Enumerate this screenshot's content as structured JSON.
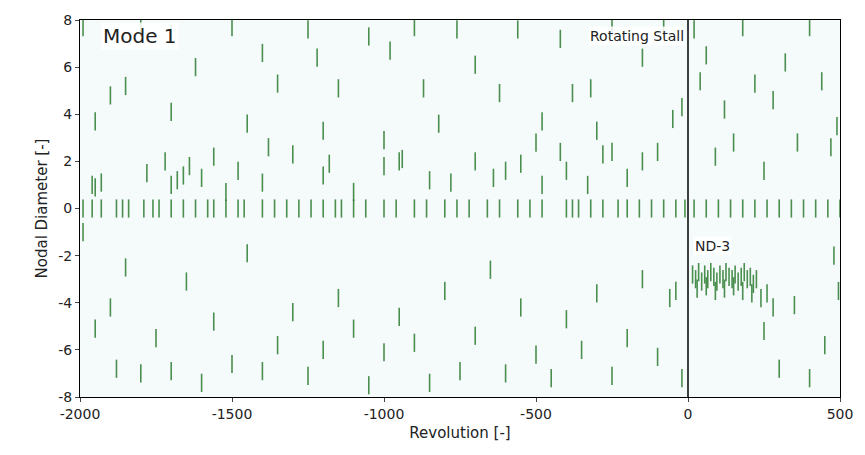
{
  "chart_data": {
    "type": "scatter",
    "x_label": "Revolution [-]",
    "y_label": "Nodal Diameter [-]",
    "xlim": [
      -2000,
      500
    ],
    "xticks": [
      -2000,
      -1500,
      -1000,
      -500,
      0,
      500
    ],
    "ylim": [
      -8,
      8
    ],
    "yticks": [
      -8,
      -6,
      -4,
      -2,
      0,
      2,
      4,
      6,
      8
    ],
    "grid": false,
    "color": "#2e7d32",
    "marker": "line-ns",
    "event_line_x": 0,
    "annotations": [
      {
        "text": "Mode 1",
        "x": -1930,
        "y": 7.3
      },
      {
        "text": "Rotating Stall",
        "x": -5,
        "y": 7.3
      },
      {
        "text": "ND-3",
        "x": 80,
        "y": -2.0
      }
    ],
    "x": [
      -1960,
      -1950,
      -1930,
      -1780,
      -1720,
      -1700,
      -1680,
      -1660,
      -1640,
      -1600,
      -1560,
      -1520,
      -1480,
      -1400,
      -1380,
      -1300,
      -1200,
      -1180,
      -1100,
      -1000,
      -950,
      -940,
      -850,
      -780,
      -700,
      -640,
      -600,
      -550,
      -480,
      -420,
      -400,
      -330,
      -280,
      -250,
      -200,
      -150,
      -100,
      -50,
      -1990,
      -1900,
      -1850,
      -1800,
      -1700,
      -1620,
      -1500,
      -1400,
      -1350,
      -1250,
      -1220,
      -1150,
      -1050,
      -980,
      -900,
      -870,
      -760,
      -700,
      -620,
      -560,
      -480,
      -420,
      -380,
      -320,
      -250,
      -150,
      -80,
      -20,
      -1950,
      -1700,
      -1450,
      -1200,
      -1000,
      -820,
      -500,
      -300,
      20,
      40,
      60,
      90,
      120,
      150,
      180,
      220,
      250,
      280,
      320,
      360,
      400,
      440,
      470,
      490,
      -1990,
      -1950,
      -1900,
      -1880,
      -1850,
      -1800,
      -1750,
      -1700,
      -1650,
      -1600,
      -1560,
      -1500,
      -1450,
      -1400,
      -1350,
      -1300,
      -1250,
      -1200,
      -1150,
      -1100,
      -1050,
      -1000,
      -950,
      -900,
      -850,
      -800,
      -750,
      -700,
      -650,
      -600,
      -550,
      -500,
      -450,
      -400,
      -350,
      -300,
      -250,
      -200,
      -150,
      -100,
      -60,
      -40,
      -20,
      250,
      300,
      350,
      400,
      450,
      480,
      495,
      15,
      25,
      35,
      45,
      55,
      65,
      75,
      85,
      95,
      105,
      115,
      125,
      135,
      145,
      155,
      165,
      175,
      185,
      195,
      205,
      215,
      225,
      30,
      60,
      90,
      120,
      150,
      180,
      210,
      240,
      260,
      280,
      -1990,
      -1960,
      -1930,
      -1880,
      -1860,
      -1840,
      -1790,
      -1760,
      -1740,
      -1700,
      -1660,
      -1620,
      -1580,
      -1560,
      -1520,
      -1480,
      -1460,
      -1400,
      -1360,
      -1320,
      -1280,
      -1240,
      -1200,
      -1160,
      -1140,
      -1100,
      -1060,
      -1000,
      -960,
      -900,
      -860,
      -800,
      -760,
      -720,
      -660,
      -620,
      -560,
      -520,
      -480,
      -400,
      -380,
      -360,
      -320,
      -280,
      -230,
      -200,
      -160,
      -120,
      -80,
      -40,
      -10,
      20,
      60,
      100,
      140,
      180,
      220,
      260,
      300,
      340,
      380,
      420,
      460,
      500
    ],
    "y": [
      1.0,
      0.9,
      1.1,
      1.5,
      2.0,
      1.0,
      1.2,
      1.4,
      1.8,
      1.3,
      2.2,
      0.7,
      1.6,
      1.1,
      2.6,
      2.3,
      1.4,
      1.9,
      0.7,
      1.8,
      2.0,
      2.1,
      1.2,
      1.1,
      2.0,
      1.3,
      1.6,
      1.9,
      1.0,
      2.4,
      1.6,
      1.0,
      2.3,
      2.4,
      1.3,
      2.0,
      2.4,
      3.8,
      7.7,
      4.8,
      5.2,
      7.7,
      7.4,
      6.0,
      7.7,
      6.6,
      5.3,
      7.6,
      6.4,
      5.1,
      7.3,
      6.7,
      7.7,
      5.1,
      7.6,
      6.1,
      4.9,
      7.6,
      3.7,
      7.2,
      4.9,
      5.1,
      7.7,
      6.4,
      7.7,
      4.3,
      3.7,
      4.1,
      3.6,
      3.3,
      2.9,
      3.6,
      2.8,
      3.3,
      7.6,
      5.4,
      6.5,
      2.2,
      4.2,
      2.8,
      7.7,
      5.3,
      1.6,
      4.6,
      6.2,
      2.8,
      7.7,
      5.4,
      2.6,
      3.5,
      -1.0,
      -5.1,
      -4.2,
      -6.8,
      -2.5,
      -7.0,
      -5.5,
      -6.9,
      -3.1,
      -7.4,
      -4.8,
      -6.6,
      -1.9,
      -6.9,
      -5.8,
      -4.4,
      -7.1,
      -6.0,
      -3.8,
      -5.1,
      -7.5,
      -6.1,
      -4.6,
      -5.7,
      -7.4,
      -3.5,
      -6.9,
      -5.4,
      -2.6,
      -7.0,
      -4.2,
      -6.2,
      -7.2,
      -4.7,
      -6.0,
      -3.6,
      -7.1,
      -5.5,
      -3.0,
      -6.3,
      -3.8,
      -3.5,
      -7.2,
      -5.2,
      -6.8,
      -4.1,
      -7.2,
      -5.8,
      -2.0,
      -3.5,
      -2.8,
      -3.0,
      -2.7,
      -3.1,
      -2.8,
      -3.0,
      -2.7,
      -2.9,
      -3.1,
      -2.8,
      -3.0,
      -2.7,
      -2.9,
      -3.0,
      -2.8,
      -3.1,
      -2.9,
      -2.7,
      -3.0,
      -2.9,
      -3.2,
      -3.0,
      -3.4,
      -3.3,
      -3.5,
      -3.4,
      -3.3,
      -3.5,
      -3.6,
      -3.8,
      -3.6,
      -4.2,
      0,
      0,
      0,
      0,
      0,
      0,
      0,
      0,
      0,
      0,
      0,
      0,
      0,
      0,
      0,
      0,
      0,
      0,
      0,
      0,
      0,
      0,
      0,
      0,
      0,
      0,
      0,
      0,
      0,
      0,
      0,
      0,
      0,
      0,
      0,
      0,
      0,
      0,
      0,
      0,
      0,
      0,
      0,
      0,
      0,
      0,
      0,
      0,
      0,
      0,
      0,
      0,
      0,
      0,
      0,
      0,
      0,
      0,
      0,
      0,
      0,
      0,
      0,
      0
    ]
  }
}
